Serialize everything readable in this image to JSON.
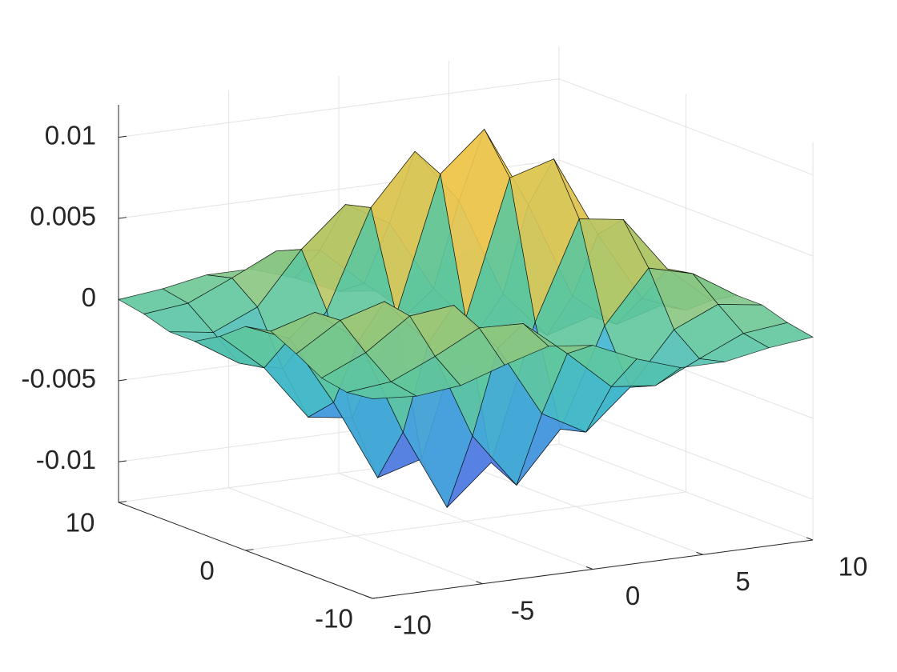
{
  "chart_data": {
    "type": "surface",
    "x": [
      -10,
      -8,
      -6,
      -4,
      -2,
      0,
      2,
      4,
      6,
      8,
      10
    ],
    "y": [
      -10,
      -8,
      -6,
      -4,
      -2,
      0,
      2,
      4,
      6,
      8,
      10
    ],
    "z": [
      [
        -0.0002,
        -0.0004,
        -0.0001,
        0.0008,
        0.0016,
        0.0013,
        0.0001,
        -0.0008,
        -0.0008,
        -0.0003,
        0
      ],
      [
        -0.0004,
        -0.0001,
        0.0011,
        0.0025,
        0.0024,
        0.0002,
        -0.0022,
        -0.0025,
        -0.0012,
        0,
        0.0003
      ],
      [
        -0.0001,
        0.0011,
        0.003,
        0.0033,
        0.0003,
        -0.0041,
        -0.0056,
        -0.0032,
        0,
        0.0012,
        0.0008
      ],
      [
        0.0008,
        0.0025,
        0.0033,
        0.0004,
        -0.0057,
        -0.0091,
        -0.006,
        0,
        0.0032,
        0.0025,
        0.0008
      ],
      [
        0.0016,
        0.0024,
        0.0003,
        -0.0057,
        -0.0107,
        -0.0083,
        0,
        0.006,
        0.0056,
        0.0022,
        -0.0001
      ],
      [
        0.0013,
        0.0002,
        -0.0041,
        -0.0091,
        -0.0083,
        0,
        0.0083,
        0.0091,
        0.0041,
        -0.0002,
        -0.0013
      ],
      [
        0.0001,
        -0.0022,
        -0.0056,
        -0.006,
        0,
        0.0083,
        0.0107,
        0.0057,
        -0.0003,
        -0.0024,
        -0.0016
      ],
      [
        -0.0008,
        -0.0025,
        -0.0032,
        0,
        0.006,
        0.0091,
        0.0057,
        -0.0004,
        -0.0033,
        -0.0025,
        -0.0008
      ],
      [
        -0.0008,
        -0.0012,
        0,
        0.0032,
        0.0056,
        0.0041,
        -0.0003,
        -0.0033,
        -0.003,
        -0.0011,
        0.0001
      ],
      [
        -0.0003,
        0,
        0.0012,
        0.0025,
        0.0022,
        -0.0002,
        -0.0024,
        -0.0025,
        -0.0011,
        0.0001,
        0.0004
      ],
      [
        0,
        0.0003,
        0.0008,
        0.0008,
        -0.0001,
        -0.0013,
        -0.0016,
        -0.0008,
        0.0001,
        0.0004,
        0.0002
      ]
    ],
    "xlim": [
      -10,
      10
    ],
    "ylim": [
      -10,
      10
    ],
    "zlim": [
      -0.0125,
      0.012
    ],
    "xticks": [
      -10,
      -5,
      0,
      5,
      10
    ],
    "yticks": [
      -10,
      0,
      10
    ],
    "zticks": [
      -0.01,
      -0.005,
      0,
      0.005,
      0.01
    ],
    "grid": true,
    "colormap": [
      "#6a62dc",
      "#4c8fe6",
      "#3fb6cf",
      "#5fc79c",
      "#b6c766",
      "#f2c650",
      "#f5e63e"
    ],
    "edge_color": "#000000"
  }
}
